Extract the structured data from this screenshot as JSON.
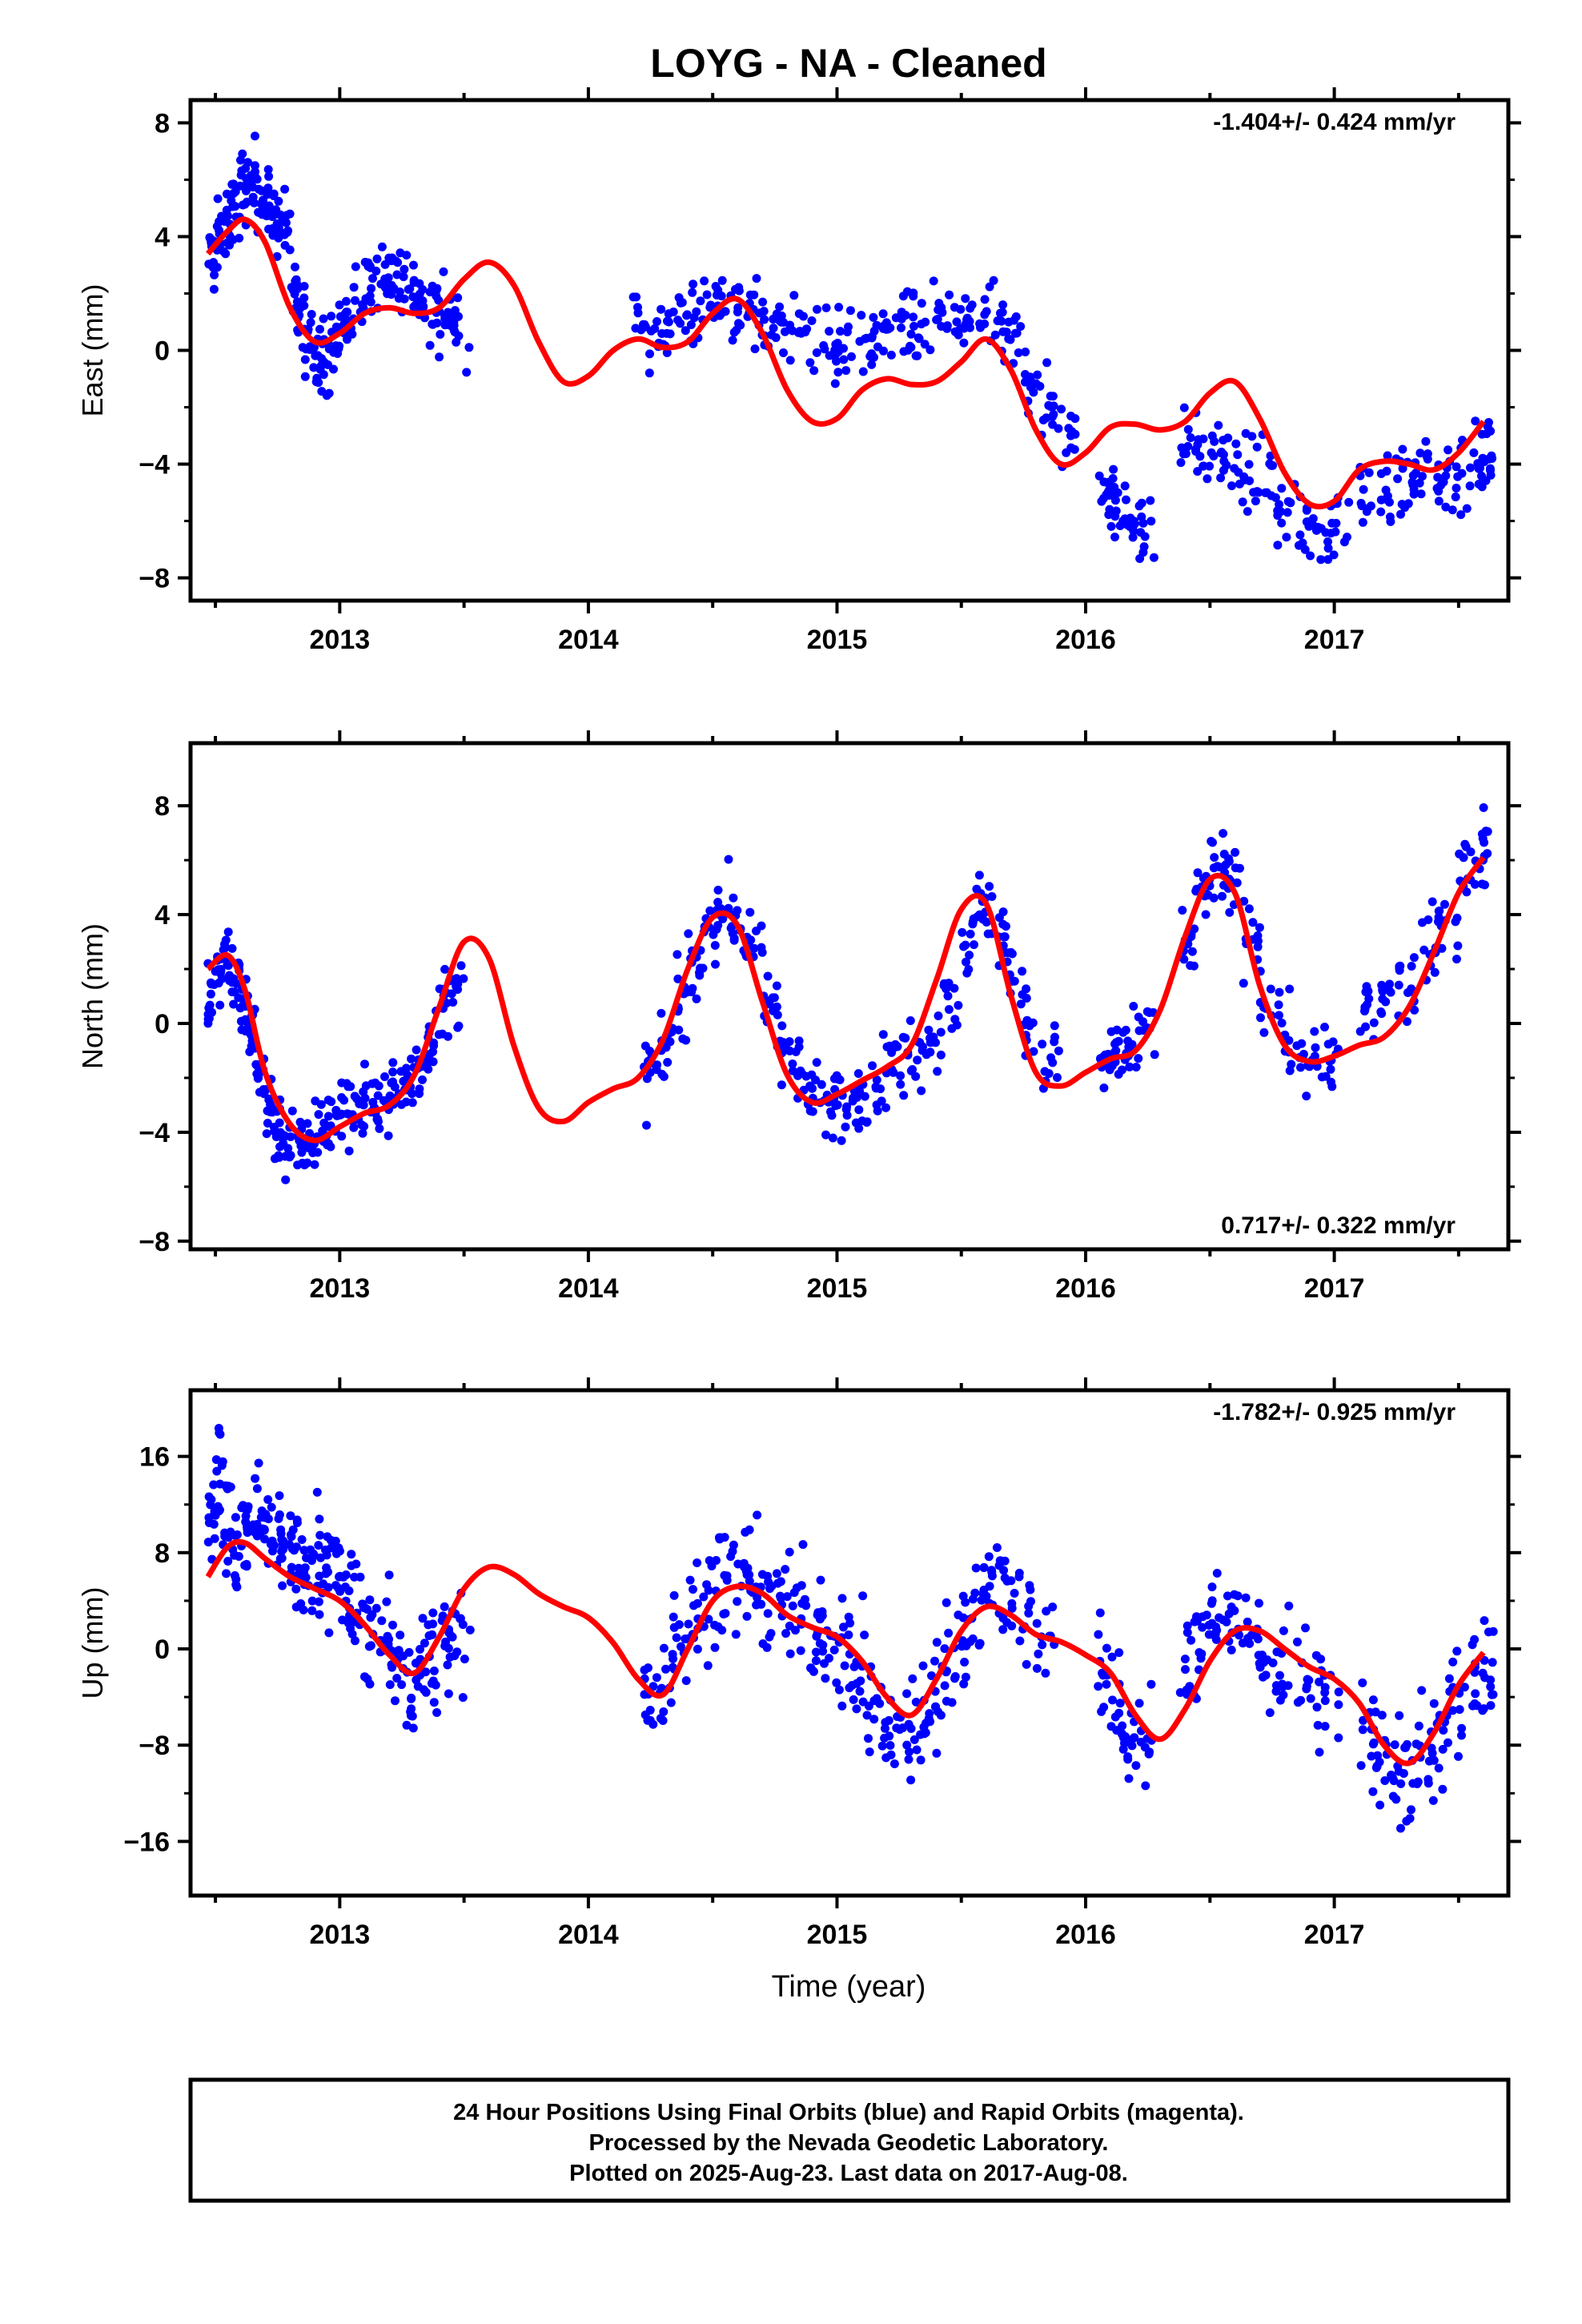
{
  "title": "LOYG  - NA - Cleaned",
  "xlabel": "Time (year)",
  "footer": [
    "24 Hour Positions Using Final Orbits (blue) and Rapid Orbits (magenta).",
    "Processed by the Nevada Geodetic Laboratory.",
    "Plotted on 2025-Aug-23. Last data on 2017-Aug-08."
  ],
  "colors": {
    "observations": "#0000ff",
    "model": "#ff0000",
    "frame": "#000000"
  },
  "chart_data": [
    {
      "type": "scatter",
      "name_key": "east",
      "ylabel": "East (mm)",
      "rate_text": "-1.404+/- 0.424 mm/yr",
      "rate_position": "top-right",
      "xlim": [
        2012.4,
        2017.7
      ],
      "ylim": [
        -8.8,
        8.8
      ],
      "yticks": [
        -8,
        -4,
        0,
        4,
        8
      ],
      "yticklabels": [
        "−8",
        "−4",
        "0",
        "4",
        "8"
      ],
      "xticks": [
        2013,
        2014,
        2015,
        2016,
        2017
      ],
      "xticklabels": [
        "2013",
        "2014",
        "2015",
        "2016",
        "2017"
      ],
      "grid": false,
      "series": [
        {
          "role": "observations",
          "style": "points",
          "x": [
            2012.47,
            2012.5,
            2012.53,
            2012.56,
            2012.6,
            2012.63,
            2012.66,
            2012.7,
            2012.73,
            2012.76,
            2012.8,
            2012.83,
            2012.86,
            2012.9,
            2012.93,
            2012.96,
            2013.0,
            2013.05,
            2013.1,
            2013.15,
            2013.2,
            2013.25,
            2013.3,
            2013.35,
            2013.4,
            2013.45,
            2014.18,
            2014.25,
            2014.32,
            2014.4,
            2014.47,
            2014.55,
            2014.62,
            2014.7,
            2014.77,
            2014.85,
            2014.92,
            2015.0,
            2015.07,
            2015.15,
            2015.22,
            2015.3,
            2015.37,
            2015.45,
            2015.52,
            2015.6,
            2015.67,
            2015.75,
            2015.82,
            2015.88,
            2016.05,
            2016.1,
            2016.15,
            2016.2,
            2016.38,
            2016.45,
            2016.52,
            2016.6,
            2016.67,
            2016.75,
            2016.82,
            2016.9,
            2016.98,
            2017.1,
            2017.18,
            2017.25,
            2017.32,
            2017.4,
            2017.47,
            2017.55,
            2017.6
          ],
          "y": [
            3.2,
            3.9,
            4.4,
            4.9,
            5.8,
            6.1,
            5.6,
            5.0,
            4.6,
            4.2,
            2.0,
            1.2,
            0.4,
            0.0,
            -0.2,
            0.3,
            1.0,
            1.6,
            2.3,
            2.9,
            2.7,
            2.3,
            1.8,
            1.4,
            1.1,
            0.8,
            0.8,
            0.9,
            1.1,
            1.3,
            1.5,
            1.6,
            1.4,
            1.1,
            0.7,
            0.4,
            0.1,
            0.2,
            0.3,
            0.5,
            0.6,
            0.7,
            0.9,
            1.0,
            1.1,
            0.9,
            0.2,
            -0.9,
            -2.0,
            -2.9,
            -4.8,
            -5.4,
            -5.8,
            -6.2,
            -3.4,
            -3.6,
            -3.9,
            -4.2,
            -4.5,
            -5.6,
            -6.1,
            -6.4,
            -6.0,
            -5.0,
            -4.8,
            -4.6,
            -4.5,
            -4.6,
            -4.3,
            -3.9,
            -3.5
          ]
        },
        {
          "role": "model",
          "style": "line",
          "x": [
            2012.47,
            2012.55,
            2012.62,
            2012.7,
            2012.8,
            2012.9,
            2013.0,
            2013.1,
            2013.2,
            2013.3,
            2013.4,
            2013.5,
            2013.6,
            2013.7,
            2013.8,
            2013.9,
            2014.0,
            2014.1,
            2014.2,
            2014.3,
            2014.4,
            2014.5,
            2014.6,
            2014.7,
            2014.8,
            2014.9,
            2015.0,
            2015.1,
            2015.2,
            2015.3,
            2015.4,
            2015.5,
            2015.6,
            2015.7,
            2015.8,
            2015.9,
            2016.0,
            2016.1,
            2016.2,
            2016.3,
            2016.4,
            2016.5,
            2016.6,
            2016.7,
            2016.8,
            2016.9,
            2017.0,
            2017.1,
            2017.2,
            2017.3,
            2017.4,
            2017.5,
            2017.6
          ],
          "y": [
            3.4,
            4.2,
            4.6,
            3.8,
            1.5,
            0.3,
            0.6,
            1.3,
            1.5,
            1.3,
            1.5,
            2.5,
            3.1,
            2.3,
            0.3,
            -1.1,
            -0.9,
            0.0,
            0.4,
            0.1,
            0.3,
            1.3,
            1.8,
            0.6,
            -1.4,
            -2.5,
            -2.4,
            -1.4,
            -1.0,
            -1.2,
            -1.1,
            -0.4,
            0.4,
            -0.7,
            -2.8,
            -4.0,
            -3.6,
            -2.7,
            -2.6,
            -2.8,
            -2.5,
            -1.5,
            -1.1,
            -2.4,
            -4.3,
            -5.4,
            -5.3,
            -4.2,
            -3.9,
            -4.0,
            -4.2,
            -3.6,
            -2.5
          ]
        }
      ]
    },
    {
      "type": "scatter",
      "name_key": "north",
      "ylabel": "North (mm)",
      "rate_text": "0.717+/- 0.322 mm/yr",
      "rate_position": "bottom-right",
      "xlim": [
        2012.4,
        2017.7
      ],
      "ylim": [
        -8.3,
        10.3
      ],
      "yticks": [
        -8,
        -4,
        0,
        4,
        8
      ],
      "yticklabels": [
        "−8",
        "−4",
        "0",
        "4",
        "8"
      ],
      "xticks": [
        2013,
        2014,
        2015,
        2016,
        2017
      ],
      "xticklabels": [
        "2013",
        "2014",
        "2015",
        "2016",
        "2017"
      ],
      "grid": false,
      "series": [
        {
          "role": "observations",
          "style": "points",
          "x": [
            2012.47,
            2012.5,
            2012.53,
            2012.56,
            2012.6,
            2012.63,
            2012.66,
            2012.7,
            2012.73,
            2012.76,
            2012.8,
            2012.85,
            2012.9,
            2012.95,
            2013.0,
            2013.05,
            2013.1,
            2013.15,
            2013.2,
            2013.25,
            2013.3,
            2013.35,
            2013.4,
            2013.45,
            2014.22,
            2014.28,
            2014.34,
            2014.4,
            2014.46,
            2014.52,
            2014.58,
            2014.64,
            2014.7,
            2014.76,
            2014.82,
            2014.88,
            2014.94,
            2015.0,
            2015.07,
            2015.14,
            2015.21,
            2015.28,
            2015.35,
            2015.42,
            2015.5,
            2015.56,
            2015.62,
            2015.68,
            2015.75,
            2015.82,
            2016.05,
            2016.1,
            2016.15,
            2016.2,
            2016.38,
            2016.44,
            2016.5,
            2016.56,
            2016.62,
            2016.7,
            2016.78,
            2016.86,
            2016.94,
            2017.1,
            2017.18,
            2017.26,
            2017.34,
            2017.42,
            2017.5,
            2017.58
          ],
          "y": [
            1.0,
            2.0,
            2.6,
            1.8,
            0.5,
            -0.5,
            -1.8,
            -3.0,
            -3.8,
            -4.4,
            -4.5,
            -4.3,
            -3.9,
            -3.5,
            -3.3,
            -3.1,
            -3.0,
            -2.8,
            -2.6,
            -2.2,
            -1.4,
            -0.4,
            0.6,
            1.2,
            -2.0,
            -1.0,
            0.6,
            2.2,
            3.6,
            4.2,
            3.6,
            2.4,
            0.8,
            -0.6,
            -1.8,
            -2.8,
            -3.0,
            -2.7,
            -2.4,
            -2.0,
            -1.5,
            -1.0,
            -0.2,
            1.0,
            2.8,
            4.4,
            3.4,
            1.8,
            0.0,
            -1.4,
            -1.6,
            -1.2,
            -1.0,
            -0.6,
            3.0,
            4.8,
            5.8,
            5.0,
            3.2,
            1.0,
            -0.6,
            -1.4,
            -1.6,
            0.3,
            0.8,
            1.4,
            2.6,
            4.0,
            5.6,
            6.6
          ]
        },
        {
          "role": "model",
          "style": "line",
          "x": [
            2012.47,
            2012.55,
            2012.62,
            2012.7,
            2012.8,
            2012.9,
            2013.0,
            2013.1,
            2013.2,
            2013.3,
            2013.4,
            2013.5,
            2013.6,
            2013.7,
            2013.8,
            2013.9,
            2014.0,
            2014.1,
            2014.2,
            2014.3,
            2014.4,
            2014.5,
            2014.6,
            2014.7,
            2014.8,
            2014.9,
            2015.0,
            2015.1,
            2015.2,
            2015.3,
            2015.4,
            2015.5,
            2015.6,
            2015.7,
            2015.8,
            2015.9,
            2016.0,
            2016.1,
            2016.2,
            2016.3,
            2016.4,
            2016.5,
            2016.6,
            2016.7,
            2016.8,
            2016.9,
            2017.0,
            2017.1,
            2017.2,
            2017.3,
            2017.4,
            2017.5,
            2017.6
          ],
          "y": [
            2.0,
            2.5,
            1.2,
            -1.8,
            -3.7,
            -4.3,
            -3.8,
            -3.3,
            -3.0,
            -1.9,
            0.6,
            3.0,
            2.4,
            -0.8,
            -3.1,
            -3.6,
            -2.9,
            -2.4,
            -2.0,
            -0.6,
            2.0,
            3.9,
            3.6,
            0.8,
            -1.9,
            -2.9,
            -2.6,
            -2.1,
            -1.6,
            -0.8,
            1.6,
            4.2,
            4.4,
            1.0,
            -1.8,
            -2.3,
            -1.8,
            -1.3,
            -1.0,
            0.5,
            3.2,
            5.3,
            4.8,
            1.4,
            -0.8,
            -1.4,
            -1.2,
            -0.8,
            -0.5,
            0.6,
            2.6,
            4.8,
            6.1
          ]
        }
      ]
    },
    {
      "type": "scatter",
      "name_key": "up",
      "ylabel": "Up (mm)",
      "rate_text": "-1.782+/- 0.925 mm/yr",
      "rate_position": "top-right",
      "xlim": [
        2012.4,
        2017.7
      ],
      "ylim": [
        -20.5,
        21.5
      ],
      "yticks": [
        -16,
        -8,
        0,
        8,
        16
      ],
      "yticklabels": [
        "−16",
        "−8",
        "0",
        "8",
        "16"
      ],
      "xticks": [
        2013,
        2014,
        2015,
        2016,
        2017
      ],
      "xticklabels": [
        "2013",
        "2014",
        "2015",
        "2016",
        "2017"
      ],
      "grid": false,
      "series": [
        {
          "role": "observations",
          "style": "points",
          "x": [
            2012.47,
            2012.5,
            2012.53,
            2012.57,
            2012.61,
            2012.65,
            2012.69,
            2012.73,
            2012.77,
            2012.81,
            2012.85,
            2012.89,
            2012.93,
            2012.97,
            2013.01,
            2013.05,
            2013.1,
            2013.15,
            2013.2,
            2013.25,
            2013.3,
            2013.35,
            2013.4,
            2013.45,
            2014.22,
            2014.28,
            2014.34,
            2014.4,
            2014.46,
            2014.52,
            2014.58,
            2014.64,
            2014.7,
            2014.76,
            2014.82,
            2014.88,
            2014.94,
            2015.0,
            2015.06,
            2015.12,
            2015.18,
            2015.24,
            2015.3,
            2015.36,
            2015.42,
            2015.48,
            2015.54,
            2015.6,
            2015.66,
            2015.72,
            2015.8,
            2016.05,
            2016.1,
            2016.15,
            2016.2,
            2016.38,
            2016.44,
            2016.5,
            2016.56,
            2016.62,
            2016.7,
            2016.78,
            2016.86,
            2016.94,
            2017.1,
            2017.16,
            2017.22,
            2017.28,
            2017.34,
            2017.4,
            2017.46,
            2017.52,
            2017.6
          ],
          "y": [
            12.0,
            14.5,
            10.0,
            8.0,
            9.5,
            11.0,
            10.5,
            9.0,
            8.5,
            7.0,
            6.5,
            8.0,
            7.0,
            6.0,
            4.0,
            3.0,
            2.0,
            1.0,
            -1.0,
            -3.0,
            -2.0,
            -1.0,
            0.5,
            1.0,
            -4.0,
            -2.0,
            1.0,
            3.0,
            4.5,
            5.5,
            6.0,
            5.0,
            4.0,
            3.5,
            3.0,
            2.0,
            1.0,
            0.0,
            -2.0,
            -5.0,
            -7.5,
            -7.0,
            -6.0,
            -4.0,
            -1.0,
            2.0,
            4.0,
            6.0,
            5.0,
            3.0,
            1.0,
            -2.0,
            -5.0,
            -7.5,
            -8.0,
            -2.0,
            1.0,
            3.0,
            2.5,
            1.0,
            -1.0,
            -2.0,
            -3.0,
            -4.0,
            -7.0,
            -9.0,
            -10.0,
            -11.0,
            -9.0,
            -7.0,
            -5.0,
            -3.0,
            -1.0
          ]
        },
        {
          "role": "model",
          "style": "line",
          "x": [
            2012.47,
            2012.55,
            2012.62,
            2012.7,
            2012.8,
            2012.9,
            2013.0,
            2013.1,
            2013.2,
            2013.3,
            2013.4,
            2013.5,
            2013.6,
            2013.7,
            2013.8,
            2013.9,
            2014.0,
            2014.1,
            2014.2,
            2014.3,
            2014.4,
            2014.5,
            2014.6,
            2014.7,
            2014.8,
            2014.9,
            2015.0,
            2015.1,
            2015.2,
            2015.3,
            2015.4,
            2015.5,
            2015.6,
            2015.7,
            2015.8,
            2015.9,
            2016.0,
            2016.1,
            2016.2,
            2016.3,
            2016.4,
            2016.5,
            2016.6,
            2016.7,
            2016.8,
            2016.9,
            2017.0,
            2017.1,
            2017.2,
            2017.3,
            2017.4,
            2017.5,
            2017.6
          ],
          "y": [
            6.0,
            8.5,
            8.8,
            7.5,
            6.0,
            5.0,
            4.0,
            2.0,
            -0.5,
            -2.0,
            1.0,
            5.0,
            6.8,
            6.2,
            4.6,
            3.5,
            2.6,
            0.5,
            -2.5,
            -3.8,
            0.0,
            4.0,
            5.2,
            4.6,
            2.8,
            1.8,
            1.0,
            -1.0,
            -4.0,
            -5.5,
            -2.5,
            1.5,
            3.5,
            2.8,
            1.2,
            0.6,
            -0.5,
            -2.0,
            -5.5,
            -7.5,
            -5.0,
            -1.0,
            1.5,
            1.5,
            0.0,
            -1.5,
            -2.5,
            -4.5,
            -8.0,
            -9.5,
            -7.0,
            -3.0,
            -0.3
          ]
        }
      ]
    }
  ]
}
